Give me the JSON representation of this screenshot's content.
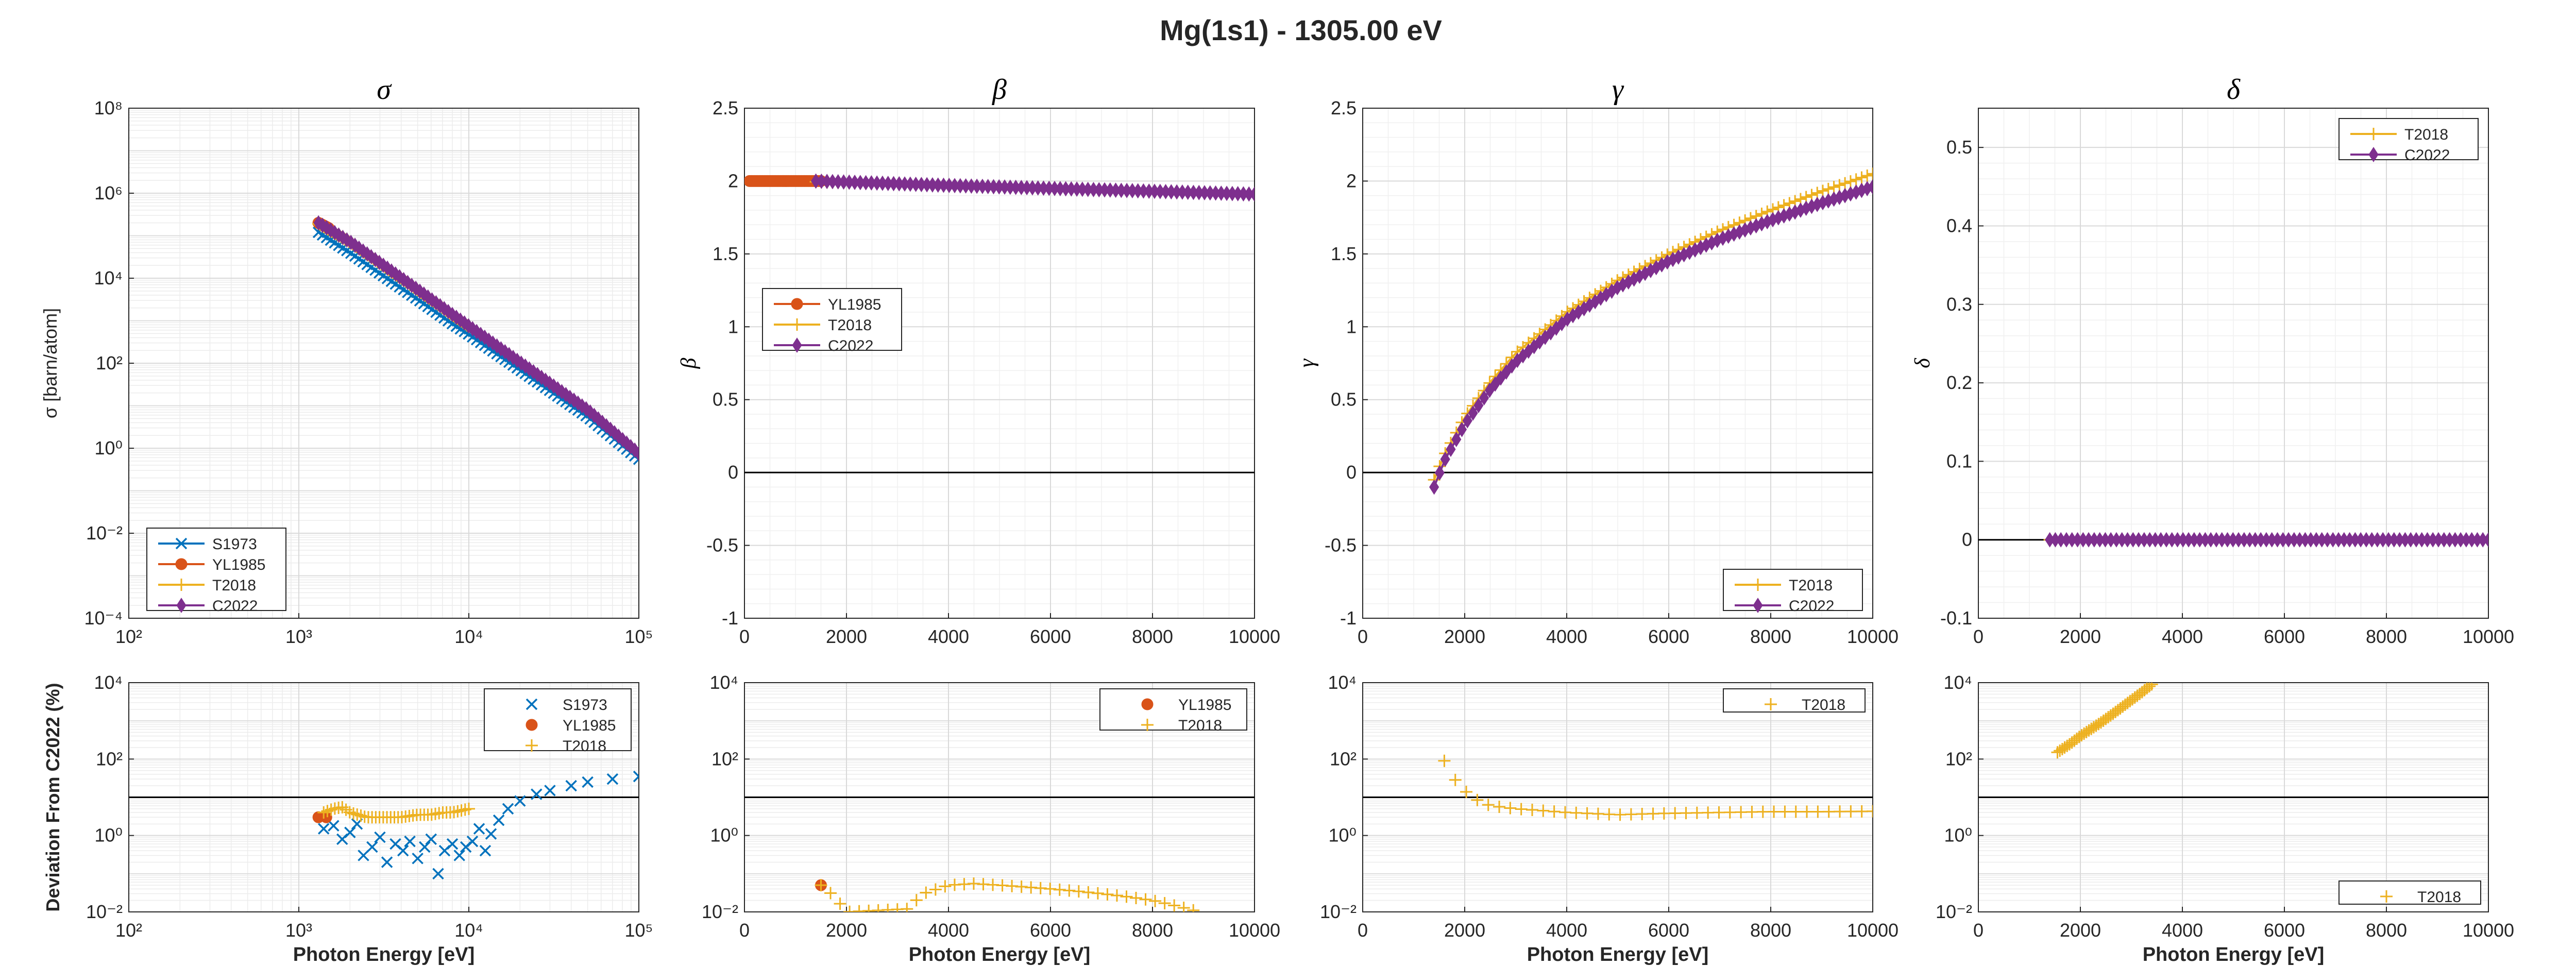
{
  "figure_title": "Mg(1s1) - 1305.00 eV",
  "colors": {
    "S1973": "#0072BD",
    "YL1985": "#D95319",
    "T2018": "#EDB120",
    "C2022": "#7E2F8E",
    "zero_line": "#000000",
    "grid": "#d9d9d9",
    "axis": "#262626"
  },
  "chart_data": [
    {
      "id": "sigma",
      "type": "line",
      "title": "σ",
      "ylabel": "σ [barn/atom]",
      "xlabel": "",
      "xscale": "log",
      "yscale": "log",
      "xlim": [
        100,
        100000
      ],
      "ylim": [
        0.0001,
        100000000
      ],
      "xtick_labels": [
        "10²",
        "10³",
        "10⁴",
        "10⁵"
      ],
      "ytick_labels": [
        "10⁻⁴",
        "10⁻²",
        "10⁰",
        "10²",
        "10⁴",
        "10⁶",
        "10⁸"
      ],
      "grid": true,
      "legend": "bottom-left",
      "series": [
        {
          "name": "S1973",
          "marker": "x",
          "x": [
            1305,
            2000,
            3000,
            5000,
            8000,
            10000,
            20000,
            50000,
            100000
          ],
          "y": [
            120000,
            40000,
            13000,
            3200,
            850,
            480,
            70,
            5.5,
            0.55
          ]
        },
        {
          "name": "YL1985",
          "marker": "o",
          "x": [
            1305,
            1500
          ],
          "y": [
            200000,
            150000
          ]
        },
        {
          "name": "T2018",
          "marker": "+",
          "x": [
            1305,
            2000,
            3000,
            5000,
            8000,
            10000
          ],
          "y": [
            190000,
            70000,
            22000,
            5200,
            1350,
            720
          ]
        },
        {
          "name": "C2022",
          "marker": "d",
          "x": [
            1305,
            2000,
            3000,
            5000,
            8000,
            10000,
            20000,
            50000,
            100000
          ],
          "y": [
            200000,
            72000,
            23000,
            5400,
            1400,
            750,
            105,
            8,
            0.75
          ]
        }
      ]
    },
    {
      "id": "beta",
      "type": "line",
      "title": "β",
      "ylabel": "β",
      "xlabel": "",
      "xscale": "linear",
      "yscale": "linear",
      "xlim": [
        0,
        10000
      ],
      "ylim": [
        -1,
        2.5
      ],
      "xticks": [
        0,
        2000,
        4000,
        6000,
        8000,
        10000
      ],
      "yticks": [
        -1,
        -0.5,
        0,
        0.5,
        1,
        1.5,
        2,
        2.5
      ],
      "xtick_labels": [
        "0",
        "2000",
        "4000",
        "6000",
        "8000",
        "10000"
      ],
      "ytick_labels": [
        "-1",
        "-0.5",
        "0",
        "0.5",
        "1",
        "1.5",
        "2",
        "2.5"
      ],
      "grid": true,
      "zero_line": true,
      "legend": "middle-left",
      "series": [
        {
          "name": "YL1985",
          "marker": "o",
          "x": [
            100,
            1500
          ],
          "y": [
            2.0,
            2.0
          ]
        },
        {
          "name": "T2018",
          "marker": "+",
          "x": [
            1400,
            4000,
            7000,
            10000
          ],
          "y": [
            1.995,
            1.97,
            1.94,
            1.91
          ]
        },
        {
          "name": "C2022",
          "marker": "d",
          "x": [
            1400,
            4000,
            7000,
            10000
          ],
          "y": [
            2.0,
            1.97,
            1.94,
            1.91
          ]
        }
      ]
    },
    {
      "id": "gamma",
      "type": "line",
      "title": "γ",
      "ylabel": "γ",
      "xlabel": "",
      "xscale": "linear",
      "yscale": "linear",
      "xlim": [
        0,
        10000
      ],
      "ylim": [
        -1,
        2.5
      ],
      "xticks": [
        0,
        2000,
        4000,
        6000,
        8000,
        10000
      ],
      "yticks": [
        -1,
        -0.5,
        0,
        0.5,
        1,
        1.5,
        2,
        2.5
      ],
      "xtick_labels": [
        "0",
        "2000",
        "4000",
        "6000",
        "8000",
        "10000"
      ],
      "ytick_labels": [
        "-1",
        "-0.5",
        "0",
        "0.5",
        "1",
        "1.5",
        "2",
        "2.5"
      ],
      "grid": true,
      "zero_line": true,
      "legend": "bottom-right",
      "series": [
        {
          "name": "T2018",
          "marker": "+",
          "x": [
            1400,
            1600,
            2000,
            2500,
            3000,
            4000,
            5000,
            6000,
            7000,
            8000,
            9000,
            10000
          ],
          "y": [
            -0.05,
            0.12,
            0.38,
            0.62,
            0.82,
            1.1,
            1.32,
            1.5,
            1.66,
            1.8,
            1.93,
            2.05
          ]
        },
        {
          "name": "C2022",
          "marker": "d",
          "x": [
            1400,
            1600,
            2000,
            2500,
            3000,
            4000,
            5000,
            6000,
            7000,
            8000,
            9000,
            10000
          ],
          "y": [
            -0.1,
            0.08,
            0.33,
            0.57,
            0.76,
            1.05,
            1.27,
            1.45,
            1.6,
            1.73,
            1.85,
            1.96
          ]
        }
      ]
    },
    {
      "id": "delta",
      "type": "line",
      "title": "δ",
      "ylabel": "δ",
      "xlabel": "",
      "xscale": "linear",
      "yscale": "linear",
      "xlim": [
        0,
        10000
      ],
      "ylim": [
        -0.1,
        0.55
      ],
      "xticks": [
        0,
        2000,
        4000,
        6000,
        8000,
        10000
      ],
      "yticks": [
        -0.1,
        0,
        0.1,
        0.2,
        0.3,
        0.4,
        0.5
      ],
      "xtick_labels": [
        "0",
        "2000",
        "4000",
        "6000",
        "8000",
        "10000"
      ],
      "ytick_labels": [
        "-0.1",
        "0",
        "0.1",
        "0.2",
        "0.3",
        "0.4",
        "0.5"
      ],
      "grid": true,
      "zero_line": true,
      "legend": "top-right",
      "series": [
        {
          "name": "T2018",
          "marker": "+",
          "x": [
            1400,
            10000
          ],
          "y": [
            0,
            0
          ]
        },
        {
          "name": "C2022",
          "marker": "d",
          "x": [
            1400,
            10000
          ],
          "y": [
            0,
            0
          ]
        }
      ]
    },
    {
      "id": "dev_sigma",
      "type": "scatter",
      "title": "",
      "ylabel": "Deviation From C2022 (%)",
      "xlabel": "Photon Energy [eV]",
      "xscale": "log",
      "yscale": "log",
      "xlim": [
        100,
        100000
      ],
      "ylim": [
        0.01,
        10000
      ],
      "xtick_labels": [
        "10²",
        "10³",
        "10⁴",
        "10⁵"
      ],
      "ytick_labels": [
        "10⁻²",
        "10⁰",
        "10²",
        "10⁴"
      ],
      "grid": true,
      "reference_line": 10,
      "legend": "top-right",
      "series": [
        {
          "name": "S1973",
          "marker": "x",
          "x": [
            1400,
            1600,
            1800,
            2000,
            2200,
            2400,
            2700,
            3000,
            3300,
            3700,
            4100,
            4500,
            5000,
            5500,
            6000,
            6600,
            7200,
            8000,
            8800,
            9600,
            10500,
            11500,
            12500,
            13500,
            15000,
            17000,
            20000,
            25000,
            30000,
            40000,
            50000,
            70000,
            100000
          ],
          "y": [
            1.5,
            1.8,
            0.8,
            1.2,
            2.0,
            0.3,
            0.5,
            0.9,
            0.2,
            0.6,
            0.4,
            0.7,
            0.25,
            0.5,
            0.8,
            0.1,
            0.4,
            0.6,
            0.3,
            0.5,
            0.7,
            1.5,
            0.4,
            1.1,
            2.5,
            5,
            8,
            12,
            15,
            20,
            25,
            30,
            35
          ]
        },
        {
          "name": "YL1985",
          "marker": "o",
          "x": [
            1305,
            1450
          ],
          "y": [
            3,
            3
          ]
        },
        {
          "name": "T2018",
          "marker": "+",
          "x": [
            1400,
            1600,
            1800,
            2000,
            2500,
            3000,
            4000,
            5000,
            6000,
            7000,
            8000,
            9000,
            10000
          ],
          "y": [
            4,
            5,
            5.5,
            4,
            3,
            3,
            3,
            3.5,
            3.5,
            4,
            4,
            4.5,
            5
          ]
        }
      ]
    },
    {
      "id": "dev_beta",
      "type": "scatter",
      "title": "",
      "ylabel": "",
      "xlabel": "Photon Energy [eV]",
      "xscale": "linear",
      "yscale": "log",
      "xlim": [
        0,
        10000
      ],
      "ylim": [
        0.01,
        10000
      ],
      "xticks": [
        0,
        2000,
        4000,
        6000,
        8000,
        10000
      ],
      "xtick_labels": [
        "0",
        "2000",
        "4000",
        "6000",
        "8000",
        "10000"
      ],
      "ytick_labels": [
        "10⁻²",
        "10⁰",
        "10²",
        "10⁴"
      ],
      "grid": true,
      "reference_line": 10,
      "legend": "top-right",
      "series": [
        {
          "name": "YL1985",
          "marker": "o",
          "x": [
            1500
          ],
          "y": [
            0.05
          ]
        },
        {
          "name": "T2018",
          "marker": "+",
          "x": [
            1500,
            1700,
            1900,
            2000,
            3200,
            3500,
            4000,
            4500,
            5000,
            5500,
            6000,
            6500,
            7000,
            7500,
            8000,
            8500,
            8800
          ],
          "y": [
            0.05,
            0.03,
            0.015,
            0.01,
            0.012,
            0.03,
            0.05,
            0.055,
            0.05,
            0.045,
            0.04,
            0.035,
            0.03,
            0.025,
            0.02,
            0.014,
            0.011
          ]
        }
      ]
    },
    {
      "id": "dev_gamma",
      "type": "scatter",
      "title": "",
      "ylabel": "",
      "xlabel": "Photon Energy [eV]",
      "xscale": "linear",
      "yscale": "log",
      "xlim": [
        0,
        10000
      ],
      "ylim": [
        0.01,
        10000
      ],
      "xticks": [
        0,
        2000,
        4000,
        6000,
        8000,
        10000
      ],
      "xtick_labels": [
        "0",
        "2000",
        "4000",
        "6000",
        "8000",
        "10000"
      ],
      "ytick_labels": [
        "10⁻²",
        "10⁰",
        "10²",
        "10⁴"
      ],
      "grid": true,
      "reference_line": 10,
      "legend": "top-right",
      "series": [
        {
          "name": "T2018",
          "marker": "+",
          "x": [
            1600,
            1800,
            2000,
            2200,
            2500,
            3000,
            3500,
            4000,
            5000,
            6000,
            7000,
            8000,
            9000,
            10000
          ],
          "y": [
            90,
            30,
            15,
            9,
            6,
            5,
            4.5,
            4,
            3.5,
            3.8,
            4,
            4.2,
            4.2,
            4.3
          ]
        }
      ]
    },
    {
      "id": "dev_delta",
      "type": "scatter",
      "title": "",
      "ylabel": "",
      "xlabel": "Photon Energy [eV]",
      "xscale": "linear",
      "yscale": "log",
      "xlim": [
        0,
        10000
      ],
      "ylim": [
        0.01,
        10000
      ],
      "xticks": [
        0,
        2000,
        4000,
        6000,
        8000,
        10000
      ],
      "xtick_labels": [
        "0",
        "2000",
        "4000",
        "6000",
        "8000",
        "10000"
      ],
      "ytick_labels": [
        "10⁻²",
        "10⁰",
        "10²",
        "10⁴"
      ],
      "grid": true,
      "reference_line": 10,
      "legend": "bottom-right",
      "series": [
        {
          "name": "T2018",
          "marker": "+",
          "x": [
            1550,
            1800,
            2000,
            2200,
            2400,
            2600,
            2800,
            3000,
            3200,
            3400
          ],
          "y": [
            150,
            250,
            400,
            600,
            900,
            1400,
            2200,
            3500,
            5500,
            9000
          ]
        }
      ]
    }
  ]
}
